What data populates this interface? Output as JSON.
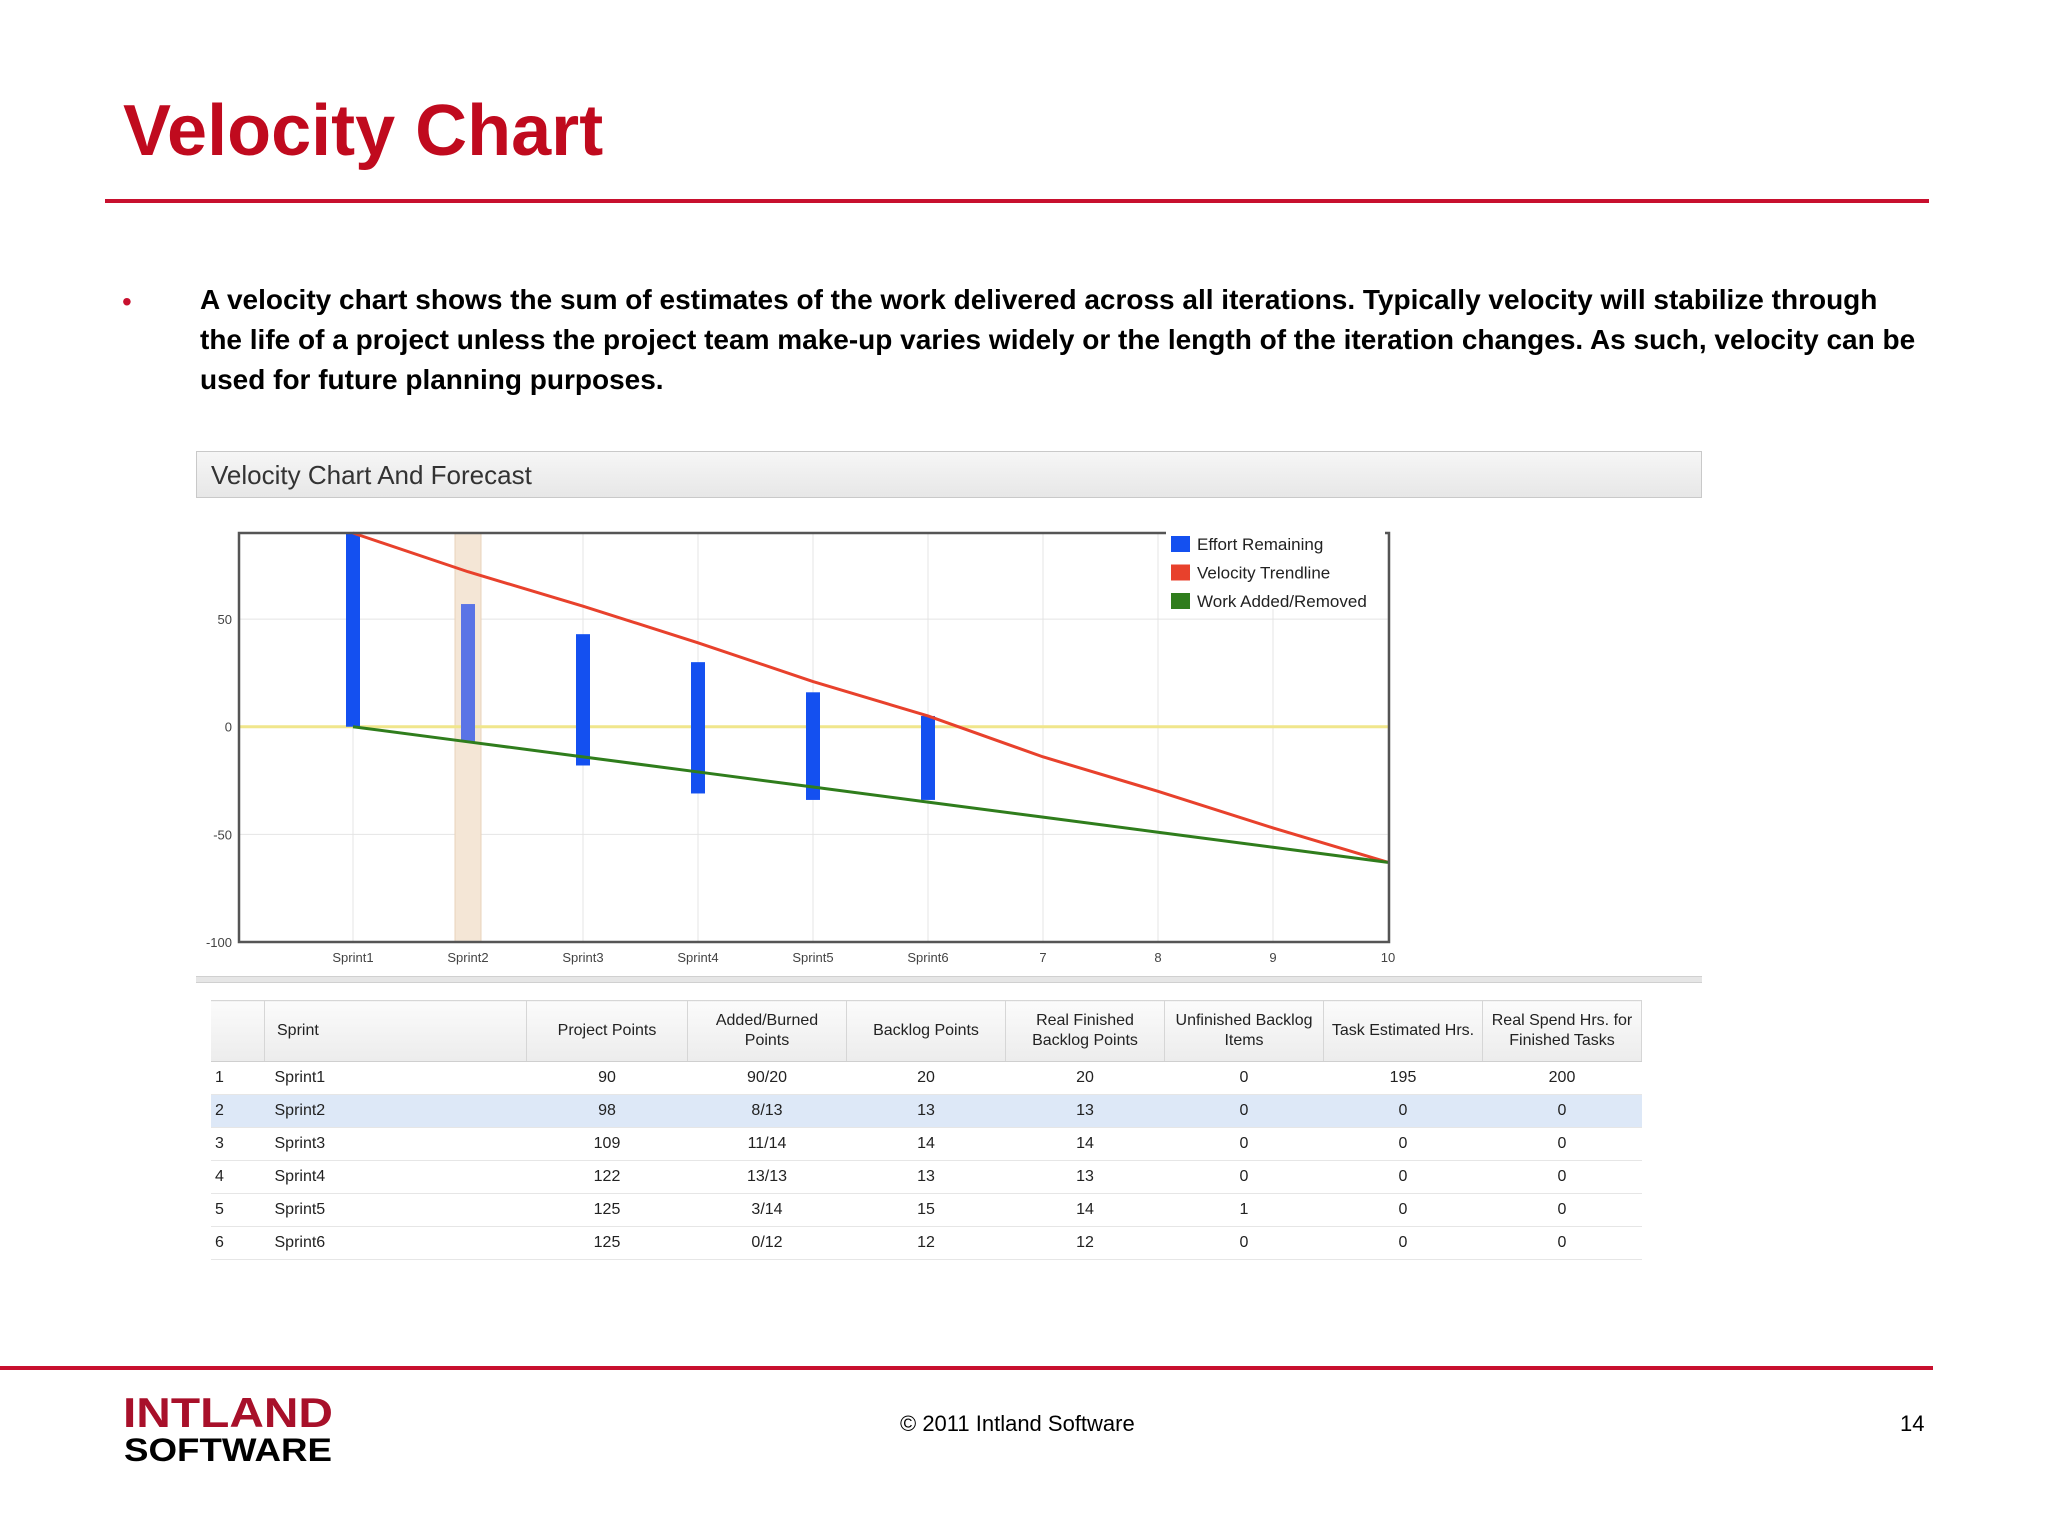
{
  "slide": {
    "title": "Velocity Chart",
    "bullet_marker": "•",
    "intro": "A velocity chart shows the sum of estimates of the work delivered across all iterations. Typically velocity will stabilize through the life of a project unless the project team make-up varies widely or the length of the iteration changes. As such, velocity can be used for future planning purposes.",
    "accent_color": "#c8102e"
  },
  "panel": {
    "title": "Velocity Chart And Forecast"
  },
  "chart_data": {
    "type": "bar",
    "title": "",
    "xlabel": "",
    "ylabel": "",
    "categories": [
      "Sprint1",
      "Sprint2",
      "Sprint3",
      "Sprint4",
      "Sprint5",
      "Sprint6",
      "7",
      "8",
      "9",
      "10"
    ],
    "ylim": [
      -100,
      90
    ],
    "yticks": [
      50,
      0,
      -50,
      -100
    ],
    "grid": true,
    "legend_position": "top-right",
    "highlighted_category": "Sprint2",
    "bars": {
      "name": "Effort Remaining",
      "color": "#1450f0",
      "top": [
        90,
        57,
        43,
        30,
        16,
        5
      ],
      "bottom": [
        0,
        -7,
        -18,
        -31,
        -34,
        -34
      ]
    },
    "series": [
      {
        "name": "Velocity Trendline",
        "color": "#e8412c",
        "values": [
          90,
          72,
          56,
          39,
          21,
          5,
          -14,
          -30,
          -47,
          -63
        ]
      },
      {
        "name": "Work Added/Removed",
        "color": "#2f7d1c",
        "values": [
          0,
          -7,
          -14,
          -21,
          -28,
          -35,
          -42,
          -49,
          -56,
          -63
        ]
      }
    ],
    "reference_line": {
      "value": 0,
      "color": "#f0e68c"
    }
  },
  "table": {
    "headers": [
      "",
      "Sprint",
      "Project Points",
      "Added/Burned Points",
      "Backlog Points",
      "Real Finished Backlog Points",
      "Unfinished Backlog Items",
      "Task Estimated Hrs.",
      "Real Spend Hrs. for Finished Tasks"
    ],
    "rows": [
      [
        "1",
        "Sprint1",
        "90",
        "90/20",
        "20",
        "20",
        "0",
        "195",
        "200"
      ],
      [
        "2",
        "Sprint2",
        "98",
        "8/13",
        "13",
        "13",
        "0",
        "0",
        "0"
      ],
      [
        "3",
        "Sprint3",
        "109",
        "11/14",
        "14",
        "14",
        "0",
        "0",
        "0"
      ],
      [
        "4",
        "Sprint4",
        "122",
        "13/13",
        "13",
        "13",
        "0",
        "0",
        "0"
      ],
      [
        "5",
        "Sprint5",
        "125",
        "3/14",
        "15",
        "14",
        "1",
        "0",
        "0"
      ],
      [
        "6",
        "Sprint6",
        "125",
        "0/12",
        "12",
        "12",
        "0",
        "0",
        "0"
      ]
    ],
    "selected_row": 1
  },
  "footer": {
    "logo_line1": "INTLAND",
    "logo_line2": "SOFTWARE",
    "logo_color": "#a8102a",
    "copyright": "© 2011 Intland Software",
    "page_number": "14"
  }
}
